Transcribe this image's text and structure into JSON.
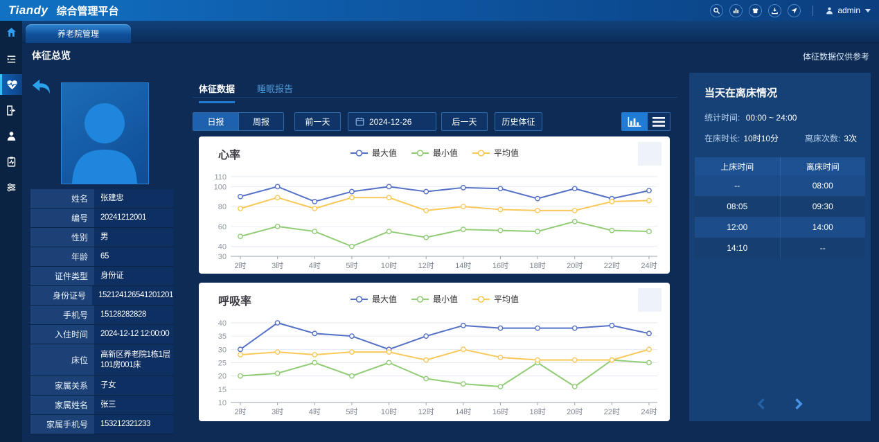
{
  "app": {
    "brand": "Tiandy",
    "title": "综合管理平台",
    "user_label": "admin",
    "header_icons": [
      "search",
      "analytics",
      "apparel",
      "download",
      "locate"
    ]
  },
  "window_tab": "养老院管理",
  "sidebar": {
    "items": [
      "home",
      "task-list",
      "vital-signs",
      "door-exit",
      "resident",
      "health-report",
      "settings"
    ],
    "active": "vital-signs"
  },
  "page": {
    "title": "体征总览",
    "disclaimer": "体征数据仅供参考"
  },
  "profile": {
    "fields": [
      {
        "label": "姓名",
        "value": "张建忠"
      },
      {
        "label": "编号",
        "value": "20241212001"
      },
      {
        "label": "性别",
        "value": "男"
      },
      {
        "label": "年龄",
        "value": "65"
      },
      {
        "label": "证件类型",
        "value": "身份证"
      },
      {
        "label": "身份证号",
        "value": "152124126541201201"
      },
      {
        "label": "手机号",
        "value": "15128282828"
      },
      {
        "label": "入住时间",
        "value": "2024-12-12 12:00:00"
      },
      {
        "label": "床位",
        "value": "高新区养老院1栋1层101房001床",
        "tall": true
      },
      {
        "label": "家属关系",
        "value": "子女"
      },
      {
        "label": "家属姓名",
        "value": "张三"
      },
      {
        "label": "家属手机号",
        "value": "153212321233"
      }
    ]
  },
  "mid_tabs": {
    "vitals": "体征数据",
    "sleep": "睡眠报告"
  },
  "controls": {
    "daily": "日报",
    "weekly": "周报",
    "prev_day": "前一天",
    "date": "2024-12-26",
    "next_day": "后一天",
    "history": "历史体征",
    "view_icons": [
      "bar-chart-view",
      "list-view"
    ]
  },
  "charts": [
    {
      "type": "line",
      "title": "心率",
      "categories": [
        "2时",
        "3时",
        "4时",
        "5时",
        "10时",
        "12时",
        "14时",
        "16时",
        "18时",
        "20时",
        "22时",
        "24时"
      ],
      "y_ticks": [
        30,
        40,
        60,
        80,
        100,
        110
      ],
      "y_min": 30,
      "y_max": 110,
      "legend_position": "top-center",
      "grid": true,
      "series": [
        {
          "name": "最大值",
          "color": "#5470c6",
          "values": [
            90,
            100,
            85,
            95,
            100,
            95,
            99,
            98,
            88,
            98,
            88,
            96
          ]
        },
        {
          "name": "最小值",
          "color": "#91cc75",
          "values": [
            50,
            60,
            55,
            40,
            55,
            49,
            57,
            56,
            55,
            65,
            56,
            55
          ]
        },
        {
          "name": "平均值",
          "color": "#fac858",
          "values": [
            78,
            89,
            78,
            89,
            89,
            76,
            80,
            77,
            76,
            76,
            85,
            86
          ]
        }
      ]
    },
    {
      "type": "line",
      "title": "呼吸率",
      "categories": [
        "2时",
        "3时",
        "4时",
        "5时",
        "10时",
        "12时",
        "14时",
        "16时",
        "18时",
        "20时",
        "22时",
        "24时"
      ],
      "y_ticks": [
        10,
        15,
        20,
        25,
        30,
        35,
        40
      ],
      "y_min": 10,
      "y_max": 40,
      "legend_position": "top-center",
      "grid": true,
      "series": [
        {
          "name": "最大值",
          "color": "#5470c6",
          "values": [
            30,
            40,
            36,
            35,
            30,
            35,
            39,
            38,
            38,
            38,
            39,
            36
          ]
        },
        {
          "name": "最小值",
          "color": "#91cc75",
          "values": [
            20,
            21,
            25,
            20,
            25,
            19,
            17,
            16,
            25,
            16,
            26,
            25
          ]
        },
        {
          "name": "平均值",
          "color": "#fac858",
          "values": [
            28,
            29,
            28,
            29,
            29,
            26,
            30,
            27,
            26,
            26,
            26,
            30
          ]
        }
      ]
    }
  ],
  "bed_panel": {
    "title": "当天在离床情况",
    "stat_time_label": "统计时间:",
    "stat_time_value": "00:00 ~ 24:00",
    "in_bed_label": "在床时长:",
    "in_bed_value": "10时10分",
    "leave_label": "离床次数:",
    "leave_value": "3次",
    "columns": [
      "上床时间",
      "离床时间"
    ],
    "rows": [
      [
        "--",
        "08:00"
      ],
      [
        "08:05",
        "09:30"
      ],
      [
        "12:00",
        "14:00"
      ],
      [
        "14:10",
        "--"
      ]
    ],
    "pagination_icons": [
      "chevron-left",
      "chevron-right"
    ]
  },
  "colors": {
    "page_bg": "#0d2b55",
    "header_gradient_left": "#1172c4",
    "panel_bg": "#154176",
    "accent_blue": "#1f7bd4",
    "series_max": "#5470c6",
    "series_min": "#91cc75",
    "series_avg": "#fac858"
  }
}
